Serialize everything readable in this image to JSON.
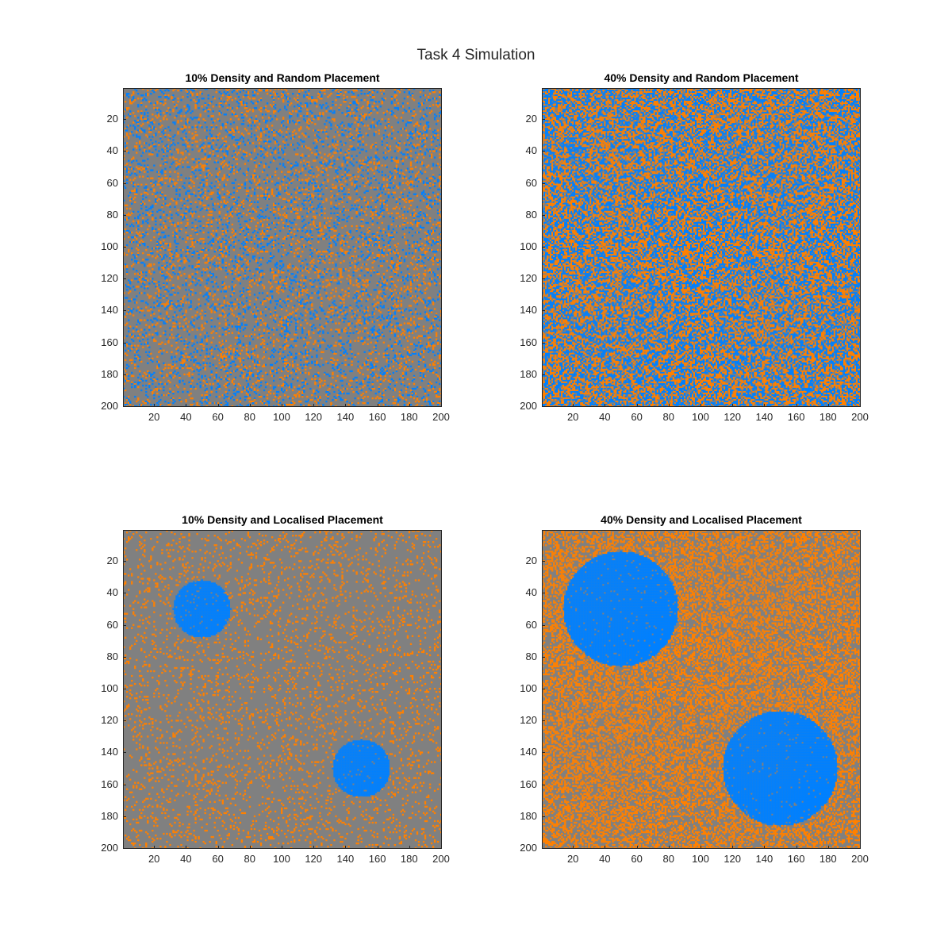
{
  "figure": {
    "title": "Task 4 Simulation"
  },
  "chart_data": [
    {
      "type": "heatmap",
      "title": "10% Density and Random Placement",
      "xlabel": "",
      "ylabel": "",
      "xlim": [
        1,
        200
      ],
      "ylim": [
        1,
        200
      ],
      "y_reversed": true,
      "grid_size": 200,
      "xticks": [
        20,
        40,
        60,
        80,
        100,
        120,
        140,
        160,
        180,
        200
      ],
      "yticks": [
        20,
        40,
        60,
        80,
        100,
        120,
        140,
        160,
        180,
        200
      ],
      "colors": {
        "empty": "#808080",
        "species_a": "#ff8000",
        "species_b": "#0080ff"
      },
      "placement": "random",
      "fraction_species_a": 0.1,
      "fraction_species_b": 0.1,
      "grid": false
    },
    {
      "type": "heatmap",
      "title": "40% Density and Random Placement",
      "xlabel": "",
      "ylabel": "",
      "xlim": [
        1,
        200
      ],
      "ylim": [
        1,
        200
      ],
      "y_reversed": true,
      "grid_size": 200,
      "xticks": [
        20,
        40,
        60,
        80,
        100,
        120,
        140,
        160,
        180,
        200
      ],
      "yticks": [
        20,
        40,
        60,
        80,
        100,
        120,
        140,
        160,
        180,
        200
      ],
      "colors": {
        "empty": "#808080",
        "species_a": "#ff8000",
        "species_b": "#0080ff"
      },
      "placement": "random",
      "fraction_species_a": 0.4,
      "fraction_species_b": 0.4,
      "grid": false
    },
    {
      "type": "heatmap",
      "title": "10% Density and Localised Placement",
      "xlabel": "",
      "ylabel": "",
      "xlim": [
        1,
        200
      ],
      "ylim": [
        1,
        200
      ],
      "y_reversed": true,
      "grid_size": 200,
      "xticks": [
        20,
        40,
        60,
        80,
        100,
        120,
        140,
        160,
        180,
        200
      ],
      "yticks": [
        20,
        40,
        60,
        80,
        100,
        120,
        140,
        160,
        180,
        200
      ],
      "colors": {
        "empty": "#808080",
        "species_a": "#ff8000",
        "species_b": "#0080ff"
      },
      "placement": "localised",
      "fraction_species_a": 0.1,
      "clusters_species_b": [
        {
          "center_x": 50,
          "center_y": 50,
          "radius": 18
        },
        {
          "center_x": 150,
          "center_y": 150,
          "radius": 18
        }
      ],
      "grid": false
    },
    {
      "type": "heatmap",
      "title": "40% Density and Localised Placement",
      "xlabel": "",
      "ylabel": "",
      "xlim": [
        1,
        200
      ],
      "ylim": [
        1,
        200
      ],
      "y_reversed": true,
      "grid_size": 200,
      "xticks": [
        20,
        40,
        60,
        80,
        100,
        120,
        140,
        160,
        180,
        200
      ],
      "yticks": [
        20,
        40,
        60,
        80,
        100,
        120,
        140,
        160,
        180,
        200
      ],
      "colors": {
        "empty": "#808080",
        "species_a": "#ff8000",
        "species_b": "#0080ff"
      },
      "placement": "localised",
      "fraction_species_a": 0.4,
      "clusters_species_b": [
        {
          "center_x": 50,
          "center_y": 50,
          "radius": 36
        },
        {
          "center_x": 150,
          "center_y": 150,
          "radius": 36
        }
      ],
      "grid": false
    }
  ]
}
